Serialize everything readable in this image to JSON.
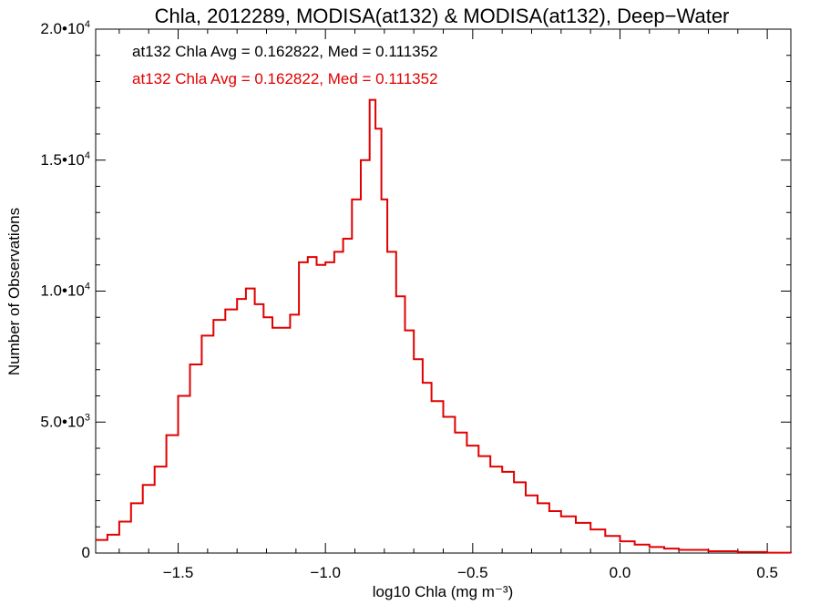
{
  "chart_data": {
    "type": "line",
    "title": "Chla, 2012289, MODISA(at132) & MODISA(at132), Deep−Water",
    "xlabel": "log10 Chla (mg m⁻³)",
    "ylabel": "Number of Observations",
    "xlim": [
      -1.78,
      0.58
    ],
    "ylim": [
      0,
      20000
    ],
    "x_ticks": [
      {
        "value": -1.5,
        "label": "−1.5"
      },
      {
        "value": -1.0,
        "label": "−1.0"
      },
      {
        "value": -0.5,
        "label": "−0.5"
      },
      {
        "value": 0.0,
        "label": "0.0"
      },
      {
        "value": 0.5,
        "label": "0.5"
      }
    ],
    "y_ticks": [
      {
        "value": 0,
        "mantissa": "0",
        "exp": ""
      },
      {
        "value": 5000,
        "mantissa": "5.0•10",
        "exp": "3"
      },
      {
        "value": 10000,
        "mantissa": "1.0•10",
        "exp": "4"
      },
      {
        "value": 15000,
        "mantissa": "1.5•10",
        "exp": "4"
      },
      {
        "value": 20000,
        "mantissa": "2.0•10",
        "exp": "4"
      }
    ],
    "annotations": [
      {
        "text": "at132 Chla Avg = 0.162822, Med = 0.111352",
        "color": "#000000"
      },
      {
        "text": "at132 Chla Avg = 0.162822, Med = 0.111352",
        "color": "#e00000"
      }
    ],
    "series": [
      {
        "color": "#e00000",
        "x": [
          -1.78,
          -1.74,
          -1.7,
          -1.66,
          -1.62,
          -1.58,
          -1.54,
          -1.5,
          -1.46,
          -1.42,
          -1.38,
          -1.34,
          -1.3,
          -1.27,
          -1.24,
          -1.21,
          -1.18,
          -1.15,
          -1.12,
          -1.09,
          -1.06,
          -1.03,
          -1.0,
          -0.97,
          -0.94,
          -0.91,
          -0.88,
          -0.85,
          -0.83,
          -0.81,
          -0.79,
          -0.76,
          -0.73,
          -0.7,
          -0.67,
          -0.64,
          -0.6,
          -0.56,
          -0.52,
          -0.48,
          -0.44,
          -0.4,
          -0.36,
          -0.32,
          -0.28,
          -0.24,
          -0.2,
          -0.15,
          -0.1,
          -0.05,
          0.0,
          0.05,
          0.1,
          0.15,
          0.2,
          0.3,
          0.4,
          0.5,
          0.58
        ],
        "y": [
          500,
          700,
          1200,
          1900,
          2600,
          3300,
          4500,
          6000,
          7200,
          8300,
          8900,
          9300,
          9700,
          10100,
          9500,
          9000,
          8600,
          8600,
          9100,
          11100,
          11300,
          11000,
          11100,
          11500,
          12000,
          13500,
          15000,
          17300,
          16200,
          13500,
          11500,
          9800,
          8500,
          7400,
          6500,
          5800,
          5200,
          4600,
          4100,
          3700,
          3300,
          3100,
          2700,
          2200,
          1900,
          1600,
          1400,
          1150,
          900,
          650,
          450,
          320,
          230,
          170,
          120,
          70,
          40,
          15,
          5
        ]
      }
    ]
  }
}
